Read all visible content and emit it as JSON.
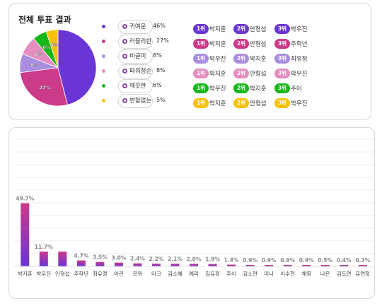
{
  "overall": {
    "title": "전체 투표 결과"
  },
  "chart_data": [
    {
      "type": "pie",
      "slices": [
        {
          "label": "귀여운",
          "value": 46,
          "color": "#6a35d6",
          "label_on_slice": ""
        },
        {
          "label": "러블리한",
          "value": 27,
          "color": "#cc3a8a",
          "label_on_slice": "27%"
        },
        {
          "label": "비글미",
          "value": 8,
          "color": "#a98ee0",
          "label_on_slice": "8%"
        },
        {
          "label": "파워청순",
          "value": 8,
          "color": "#e48ec0",
          "label_on_slice": "8%"
        },
        {
          "label": "깨끗한",
          "value": 6,
          "color": "#16b81a",
          "label_on_slice": "6%"
        },
        {
          "label": "변함없는",
          "value": 5,
          "color": "#f4c20d",
          "label_on_slice": "5%"
        }
      ],
      "rows": [
        {
          "label": "귀여운",
          "pct": "46%",
          "color": "#6a35d6",
          "ranks": [
            {
              "rank": "1위",
              "name": "박지훈"
            },
            {
              "rank": "2위",
              "name": "안형섭"
            },
            {
              "rank": "3위",
              "name": "박우진"
            }
          ]
        },
        {
          "label": "러블리한",
          "pct": "27%",
          "color": "#cc3a8a",
          "ranks": [
            {
              "rank": "1위",
              "name": "박지훈"
            },
            {
              "rank": "2위",
              "name": "안형섭"
            },
            {
              "rank": "3위",
              "name": "주학년"
            }
          ]
        },
        {
          "label": "비글미",
          "pct": "8%",
          "color": "#a98ee0",
          "ranks": [
            {
              "rank": "1위",
              "name": "박우진"
            },
            {
              "rank": "2위",
              "name": "박지훈"
            },
            {
              "rank": "3위",
              "name": "최유정"
            }
          ]
        },
        {
          "label": "파워청순",
          "pct": "8%",
          "color": "#e48ec0",
          "ranks": [
            {
              "rank": "1위",
              "name": "박지훈"
            },
            {
              "rank": "2위",
              "name": "안형섭"
            },
            {
              "rank": "3위",
              "name": "박우진"
            }
          ]
        },
        {
          "label": "깨끗한",
          "pct": "6%",
          "color": "#16b81a",
          "ranks": [
            {
              "rank": "1위",
              "name": "박우진"
            },
            {
              "rank": "2위",
              "name": "박지훈"
            },
            {
              "rank": "3위",
              "name": "주이"
            }
          ]
        },
        {
          "label": "변함없는",
          "pct": "5%",
          "color": "#f4c20d",
          "ranks": [
            {
              "rank": "1위",
              "name": "박지훈"
            },
            {
              "rank": "2위",
              "name": "안형섭"
            },
            {
              "rank": "3위",
              "name": "박우진"
            }
          ]
        }
      ]
    },
    {
      "type": "bar",
      "categories": [
        "박지훈",
        "박우진",
        "안형섭",
        "주학년",
        "최유정",
        "아린",
        "쯔위",
        "마크",
        "김소혜",
        "예리",
        "김유정",
        "주이",
        "김소현",
        "미나",
        "이수현",
        "채영",
        "나은",
        "김도연",
        "유연정"
      ],
      "values": [
        49.7,
        11.7,
        11.7,
        4.7,
        3.5,
        3.0,
        2.4,
        2.2,
        2.1,
        2.0,
        1.9,
        1.4,
        0.9,
        0.9,
        0.9,
        0.9,
        0.5,
        0.4,
        0.3
      ],
      "labels": [
        "49.7%",
        "11.7%",
        "",
        "4.7%",
        "3.5%",
        "3.0%",
        "2.4%",
        "2.2%",
        "2.1%",
        "2.0%",
        "1.9%",
        "1.4%",
        "0.9%",
        "0.9%",
        "0.9%",
        "0.9%",
        "0.5%",
        "0.4%",
        "0.3%"
      ],
      "ylim": [
        0,
        100
      ],
      "grid": true,
      "colors": {
        "bar_top": "#cc3a8a",
        "bar_bottom": "#6a35d6",
        "label": "#888888"
      }
    }
  ]
}
